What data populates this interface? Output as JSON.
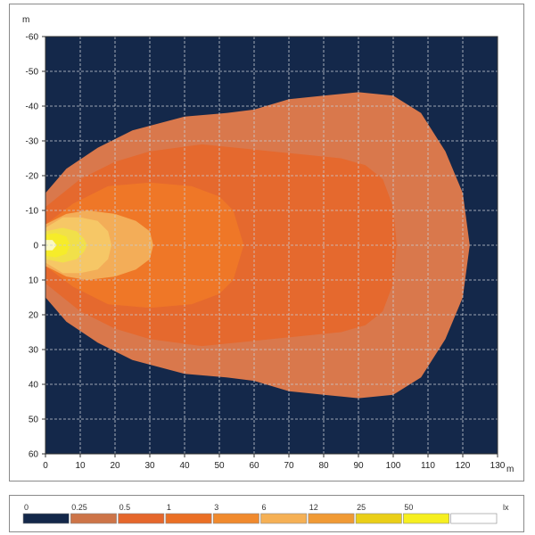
{
  "chart_data": {
    "type": "heatmap",
    "title": "",
    "xunit": "m",
    "yunit": "m",
    "xlim": [
      0,
      130
    ],
    "ylim": [
      -60,
      60
    ],
    "y_inverted_top": -60,
    "x_ticks": [
      "0",
      "10",
      "20",
      "30",
      "40",
      "50",
      "60",
      "70",
      "80",
      "90",
      "100",
      "110",
      "120",
      "130"
    ],
    "y_ticks": [
      "-60",
      "-50",
      "-40",
      "-30",
      "-20",
      "-10",
      "0",
      "10",
      "20",
      "30",
      "40",
      "50",
      "60"
    ],
    "grid": true,
    "background_color": "#14284a",
    "legend": {
      "placement": "bottom",
      "unit": "lx",
      "thresholds": [
        "0",
        "0.25",
        "0.5",
        "1",
        "3",
        "6",
        "12",
        "25",
        "50"
      ],
      "colors": [
        "#14284a",
        "#cd7448",
        "#e5672c",
        "#ea6f25",
        "#f08a2e",
        "#f5b055",
        "#f09a35",
        "#eacf18",
        "#f6ef20",
        "#ffffff"
      ]
    },
    "contours": [
      {
        "level": "0.25",
        "color": "#d9784c",
        "points": [
          [
            0,
            -15
          ],
          [
            6,
            -22
          ],
          [
            15,
            -28
          ],
          [
            25,
            -33
          ],
          [
            40,
            -37
          ],
          [
            52,
            -38
          ],
          [
            60,
            -39
          ],
          [
            70,
            -42
          ],
          [
            80,
            -43
          ],
          [
            90,
            -44
          ],
          [
            100,
            -43
          ],
          [
            108,
            -38
          ],
          [
            115,
            -27
          ],
          [
            120,
            -15
          ],
          [
            122,
            0
          ],
          [
            120,
            15
          ],
          [
            115,
            27
          ],
          [
            108,
            38
          ],
          [
            100,
            43
          ],
          [
            90,
            44
          ],
          [
            80,
            43
          ],
          [
            70,
            42
          ],
          [
            60,
            39
          ],
          [
            52,
            38
          ],
          [
            40,
            37
          ],
          [
            25,
            33
          ],
          [
            15,
            28
          ],
          [
            6,
            22
          ],
          [
            0,
            15
          ]
        ]
      },
      {
        "level": "0.5",
        "color": "#e5692e",
        "points": [
          [
            0,
            -11
          ],
          [
            10,
            -19
          ],
          [
            20,
            -24
          ],
          [
            30,
            -27
          ],
          [
            45,
            -29
          ],
          [
            55,
            -28
          ],
          [
            65,
            -27
          ],
          [
            75,
            -26
          ],
          [
            85,
            -25
          ],
          [
            92,
            -23
          ],
          [
            97,
            -19
          ],
          [
            100,
            -11
          ],
          [
            101,
            0
          ],
          [
            100,
            11
          ],
          [
            97,
            19
          ],
          [
            92,
            23
          ],
          [
            85,
            25
          ],
          [
            75,
            26
          ],
          [
            65,
            27
          ],
          [
            55,
            28
          ],
          [
            45,
            29
          ],
          [
            30,
            27
          ],
          [
            20,
            24
          ],
          [
            10,
            19
          ],
          [
            0,
            11
          ]
        ]
      },
      {
        "level": "1",
        "color": "#ef7727",
        "points": [
          [
            0,
            -6
          ],
          [
            8,
            -12
          ],
          [
            18,
            -17
          ],
          [
            30,
            -18
          ],
          [
            42,
            -17
          ],
          [
            50,
            -14
          ],
          [
            54,
            -10
          ],
          [
            57,
            0
          ],
          [
            54,
            10
          ],
          [
            50,
            14
          ],
          [
            42,
            17
          ],
          [
            30,
            18
          ],
          [
            18,
            17
          ],
          [
            8,
            12
          ],
          [
            0,
            6
          ]
        ]
      },
      {
        "level": "3",
        "color": "#f3ad58",
        "points": [
          [
            0,
            -6
          ],
          [
            6,
            -9
          ],
          [
            12,
            -10
          ],
          [
            20,
            -9
          ],
          [
            26,
            -7
          ],
          [
            30,
            -4
          ],
          [
            31,
            0
          ],
          [
            30,
            4
          ],
          [
            26,
            7
          ],
          [
            20,
            9
          ],
          [
            12,
            10
          ],
          [
            6,
            9
          ],
          [
            0,
            6
          ]
        ]
      },
      {
        "level": "6",
        "color": "#f6c766",
        "points": [
          [
            0,
            -5
          ],
          [
            5,
            -8
          ],
          [
            10,
            -8
          ],
          [
            15,
            -7
          ],
          [
            18,
            -4
          ],
          [
            19,
            0
          ],
          [
            18,
            4
          ],
          [
            15,
            7
          ],
          [
            10,
            8
          ],
          [
            5,
            8
          ],
          [
            0,
            5
          ]
        ]
      },
      {
        "level": "12",
        "color": "#f1e04a",
        "points": [
          [
            0,
            -4
          ],
          [
            5,
            -5
          ],
          [
            9,
            -4
          ],
          [
            11,
            -2
          ],
          [
            12,
            0
          ],
          [
            11,
            2
          ],
          [
            9,
            4
          ],
          [
            5,
            5
          ],
          [
            0,
            4
          ]
        ]
      },
      {
        "level": "25",
        "color": "#f6ec2a",
        "points": [
          [
            0,
            -3
          ],
          [
            3,
            -3.5
          ],
          [
            6,
            -2.5
          ],
          [
            7,
            0
          ],
          [
            6,
            2.5
          ],
          [
            3,
            3.5
          ],
          [
            0,
            3
          ]
        ]
      },
      {
        "level": "50",
        "color": "#fbf8c2",
        "points": [
          [
            0,
            -1.5
          ],
          [
            2,
            -1.5
          ],
          [
            3.2,
            0
          ],
          [
            2,
            1.5
          ],
          [
            0,
            1.5
          ]
        ]
      }
    ]
  }
}
